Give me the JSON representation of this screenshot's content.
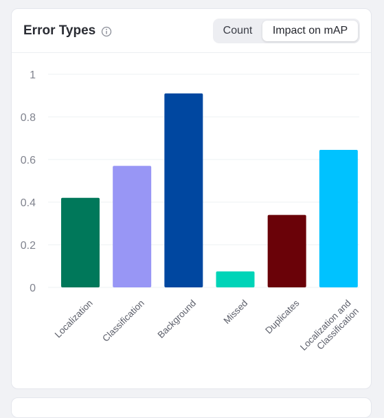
{
  "card": {
    "title": "Error Types",
    "info_icon": "info-icon",
    "toggle": {
      "count_label": "Count",
      "impact_label": "Impact on mAP",
      "selected": "Impact on mAP"
    }
  },
  "chart_data": {
    "type": "bar",
    "categories": [
      "Localization",
      "Classification",
      "Background",
      "Missed",
      "Duplicates",
      "Localization and Classification"
    ],
    "values": [
      0.42,
      0.57,
      0.91,
      0.075,
      0.34,
      0.645
    ],
    "colors": [
      "#00785a",
      "#9896f5",
      "#0047a0",
      "#00d4b8",
      "#6a0208",
      "#00c2ff"
    ],
    "yticks": [
      "0",
      "0.2",
      "0.4",
      "0.6",
      "0.8",
      "1"
    ],
    "ylim": [
      0,
      1
    ],
    "grid": true
  }
}
